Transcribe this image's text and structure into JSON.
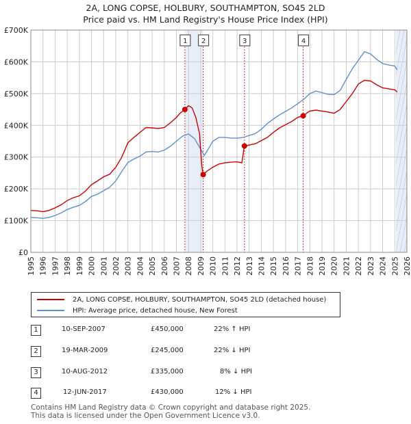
{
  "header": {
    "title": "2A, LONG COPSE, HOLBURY, SOUTHAMPTON, SO45 2LD",
    "subtitle": "Price paid vs. HM Land Registry's House Price Index (HPI)"
  },
  "colors": {
    "property": "#cc0000",
    "hpi": "#5b8fd0",
    "shade": "#dde7f7",
    "grid": "#cccccc"
  },
  "chart_data": {
    "type": "line",
    "title": "2A, LONG COPSE, HOLBURY, SOUTHAMPTON, SO45 2LD",
    "subtitle": "Price paid vs. HM Land Registry's House Price Index (HPI)",
    "xlim": [
      1995,
      2026
    ],
    "ylim": [
      0,
      700000
    ],
    "x_ticks": [
      "1995",
      "1996",
      "1997",
      "1998",
      "1999",
      "2000",
      "2001",
      "2002",
      "2003",
      "2004",
      "2005",
      "2006",
      "2007",
      "2008",
      "2009",
      "2010",
      "2011",
      "2012",
      "2013",
      "2014",
      "2015",
      "2016",
      "2017",
      "2018",
      "2019",
      "2020",
      "2021",
      "2022",
      "2023",
      "2024",
      "2025",
      "2026"
    ],
    "y_ticks": [
      {
        "value": 0,
        "label": "£0"
      },
      {
        "value": 100000,
        "label": "£100K"
      },
      {
        "value": 200000,
        "label": "£200K"
      },
      {
        "value": 300000,
        "label": "£300K"
      },
      {
        "value": 400000,
        "label": "£400K"
      },
      {
        "value": 500000,
        "label": "£500K"
      },
      {
        "value": 600000,
        "label": "£600K"
      },
      {
        "value": 700000,
        "label": "£700K"
      }
    ],
    "grid": true,
    "legend_position": "below",
    "series": [
      {
        "name": "2A, LONG COPSE, HOLBURY, SOUTHAMPTON, SO45 2LD (detached house)",
        "color": "#cc0000",
        "points": [
          [
            1995,
            132000
          ],
          [
            1995.5,
            131000
          ],
          [
            1996,
            128000
          ],
          [
            1996.5,
            132000
          ],
          [
            1997,
            140000
          ],
          [
            1997.5,
            150000
          ],
          [
            1998,
            163000
          ],
          [
            1998.5,
            172000
          ],
          [
            1999,
            178000
          ],
          [
            1999.5,
            193000
          ],
          [
            2000,
            213000
          ],
          [
            2000.5,
            225000
          ],
          [
            2001,
            238000
          ],
          [
            2001.5,
            246000
          ],
          [
            2002,
            268000
          ],
          [
            2002.5,
            300000
          ],
          [
            2003,
            345000
          ],
          [
            2003.5,
            362000
          ],
          [
            2004,
            378000
          ],
          [
            2004.5,
            393000
          ],
          [
            2005,
            392000
          ],
          [
            2005.5,
            390000
          ],
          [
            2006,
            393000
          ],
          [
            2006.5,
            408000
          ],
          [
            2007,
            425000
          ],
          [
            2007.3,
            438000
          ],
          [
            2007.7,
            450000
          ],
          [
            2008,
            462000
          ],
          [
            2008.3,
            455000
          ],
          [
            2008.6,
            425000
          ],
          [
            2008.9,
            375000
          ],
          [
            2009.1,
            270000
          ],
          [
            2009.2,
            245000
          ],
          [
            2009.5,
            255000
          ],
          [
            2010,
            268000
          ],
          [
            2010.5,
            278000
          ],
          [
            2011,
            282000
          ],
          [
            2011.5,
            284000
          ],
          [
            2012,
            285000
          ],
          [
            2012.4,
            282000
          ],
          [
            2012.6,
            335000
          ],
          [
            2013,
            338000
          ],
          [
            2013.5,
            342000
          ],
          [
            2014,
            352000
          ],
          [
            2014.5,
            362000
          ],
          [
            2015,
            378000
          ],
          [
            2015.5,
            392000
          ],
          [
            2016,
            402000
          ],
          [
            2016.5,
            412000
          ],
          [
            2017,
            425000
          ],
          [
            2017.45,
            430000
          ],
          [
            2017.8,
            440000
          ],
          [
            2018,
            445000
          ],
          [
            2018.5,
            448000
          ],
          [
            2019,
            445000
          ],
          [
            2019.5,
            442000
          ],
          [
            2020,
            438000
          ],
          [
            2020.5,
            450000
          ],
          [
            2021,
            475000
          ],
          [
            2021.5,
            500000
          ],
          [
            2022,
            530000
          ],
          [
            2022.5,
            542000
          ],
          [
            2023,
            540000
          ],
          [
            2023.5,
            528000
          ],
          [
            2024,
            518000
          ],
          [
            2024.5,
            515000
          ],
          [
            2025,
            512000
          ],
          [
            2025.2,
            505000
          ]
        ]
      },
      {
        "name": "HPI: Average price, detached house, New Forest",
        "color": "#5b8fd0",
        "points": [
          [
            1995,
            110000
          ],
          [
            1995.5,
            109000
          ],
          [
            1996,
            107000
          ],
          [
            1996.5,
            110000
          ],
          [
            1997,
            116000
          ],
          [
            1997.5,
            124000
          ],
          [
            1998,
            135000
          ],
          [
            1998.5,
            142000
          ],
          [
            1999,
            148000
          ],
          [
            1999.5,
            160000
          ],
          [
            2000,
            176000
          ],
          [
            2000.5,
            183000
          ],
          [
            2001,
            194000
          ],
          [
            2001.5,
            205000
          ],
          [
            2002,
            225000
          ],
          [
            2002.5,
            255000
          ],
          [
            2003,
            283000
          ],
          [
            2003.5,
            294000
          ],
          [
            2004,
            303000
          ],
          [
            2004.5,
            316000
          ],
          [
            2005,
            318000
          ],
          [
            2005.5,
            316000
          ],
          [
            2006,
            322000
          ],
          [
            2006.5,
            334000
          ],
          [
            2007,
            350000
          ],
          [
            2007.5,
            366000
          ],
          [
            2008,
            373000
          ],
          [
            2008.5,
            358000
          ],
          [
            2009,
            325000
          ],
          [
            2009.3,
            305000
          ],
          [
            2009.7,
            330000
          ],
          [
            2010,
            350000
          ],
          [
            2010.5,
            362000
          ],
          [
            2011,
            362000
          ],
          [
            2011.5,
            360000
          ],
          [
            2012,
            360000
          ],
          [
            2012.5,
            362000
          ],
          [
            2013,
            368000
          ],
          [
            2013.5,
            374000
          ],
          [
            2014,
            388000
          ],
          [
            2014.5,
            406000
          ],
          [
            2015,
            420000
          ],
          [
            2015.5,
            433000
          ],
          [
            2016,
            444000
          ],
          [
            2016.5,
            455000
          ],
          [
            2017,
            468000
          ],
          [
            2017.5,
            482000
          ],
          [
            2018,
            500000
          ],
          [
            2018.5,
            508000
          ],
          [
            2019,
            503000
          ],
          [
            2019.5,
            498000
          ],
          [
            2020,
            497000
          ],
          [
            2020.5,
            510000
          ],
          [
            2021,
            545000
          ],
          [
            2021.5,
            578000
          ],
          [
            2022,
            605000
          ],
          [
            2022.5,
            632000
          ],
          [
            2023,
            625000
          ],
          [
            2023.5,
            608000
          ],
          [
            2024,
            595000
          ],
          [
            2024.5,
            590000
          ],
          [
            2025,
            587000
          ],
          [
            2025.2,
            575000
          ]
        ]
      }
    ],
    "markers": [
      {
        "id": "1",
        "x": 2007.7,
        "y": 450000
      },
      {
        "id": "2",
        "x": 2009.21,
        "y": 245000
      },
      {
        "id": "3",
        "x": 2012.61,
        "y": 335000
      },
      {
        "id": "4",
        "x": 2017.45,
        "y": 430000
      }
    ],
    "shaded_ranges": [
      [
        2007.7,
        2009.21
      ],
      [
        2025.1,
        2026
      ]
    ]
  },
  "legend": {
    "property_label": "2A, LONG COPSE, HOLBURY, SOUTHAMPTON, SO45 2LD (detached house)",
    "hpi_label": "HPI: Average price, detached house, New Forest"
  },
  "transactions": [
    {
      "id": "1",
      "date": "10-SEP-2007",
      "price": "£450,000",
      "hpi": "22% ↑ HPI"
    },
    {
      "id": "2",
      "date": "19-MAR-2009",
      "price": "£245,000",
      "hpi": "22% ↓ HPI"
    },
    {
      "id": "3",
      "date": "10-AUG-2012",
      "price": "£335,000",
      "hpi": "8% ↓ HPI"
    },
    {
      "id": "4",
      "date": "12-JUN-2017",
      "price": "£430,000",
      "hpi": "12% ↓ HPI"
    }
  ],
  "footer": {
    "line1": "Contains HM Land Registry data © Crown copyright and database right 2025.",
    "line2": "This data is licensed under the Open Government Licence v3.0."
  }
}
